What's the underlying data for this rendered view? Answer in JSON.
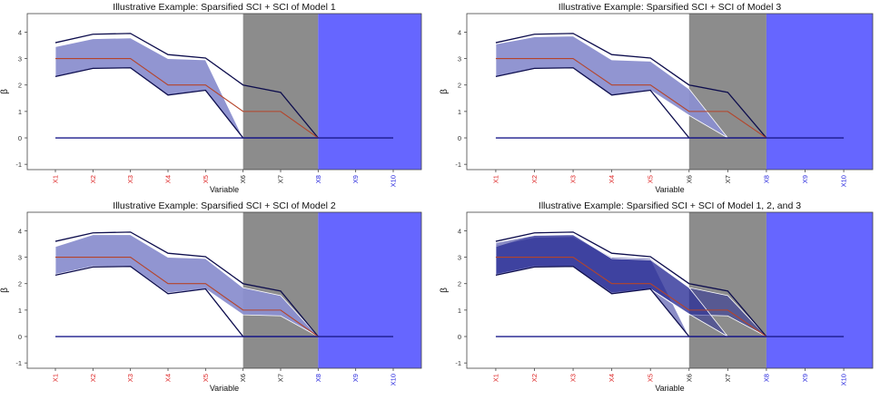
{
  "figure": {
    "xlabel": "Variable",
    "ylabel": "β",
    "colors": {
      "band_fill": "#8b8fcf",
      "band_fill_dark": "#2b2f98",
      "band_edge": "#ffffff",
      "outer_line": "#0d0d4d",
      "estimate_line": "#b5442a",
      "zero_line": "#1a1a8c",
      "gray_region": "#8c8c8c",
      "blue_region": "#6666ff",
      "label_red": "#dd2222",
      "label_black": "#222222",
      "label_blue": "#2222dd"
    }
  },
  "chart_data": [
    {
      "type": "area",
      "title": "Illustrative Example: Sparsified SCI + SCI of Model 1",
      "xlabel": "Variable",
      "ylabel": "β",
      "categories": [
        "X1",
        "X2",
        "X3",
        "X4",
        "X5",
        "X6",
        "X7",
        "X8",
        "X9",
        "X10"
      ],
      "category_colors": [
        "red",
        "red",
        "red",
        "red",
        "red",
        "black",
        "black",
        "blue",
        "blue",
        "blue"
      ],
      "ylim": [
        -1.2,
        4.7
      ],
      "yticks": [
        -1,
        0,
        1,
        2,
        3,
        4
      ],
      "shaded_regions": [
        {
          "name": "gray-region",
          "from": 6,
          "to": 8,
          "color": "gray"
        },
        {
          "name": "blue-region",
          "from": 8,
          "to": 10.75,
          "color": "blue"
        }
      ],
      "outer_upper": [
        3.6,
        3.92,
        3.95,
        3.15,
        3.02,
        2.0,
        1.72,
        0
      ],
      "outer_lower": [
        2.32,
        2.63,
        2.65,
        1.62,
        1.8,
        0,
        0,
        0
      ],
      "estimate": [
        3,
        3,
        3,
        2,
        2,
        1,
        1,
        0
      ],
      "zero_line": [
        0,
        0,
        0,
        0,
        0,
        0,
        0,
        0,
        0,
        0
      ],
      "bands": [
        {
          "name": "model-1",
          "upper": [
            3.45,
            3.75,
            3.78,
            3.0,
            2.95,
            0
          ],
          "lower": [
            2.32,
            2.63,
            2.65,
            1.62,
            1.8,
            0
          ]
        }
      ]
    },
    {
      "type": "area",
      "title": "Illustrative Example: Sparsified SCI + SCI of Model 3",
      "xlabel": "Variable",
      "ylabel": "β",
      "categories": [
        "X1",
        "X2",
        "X3",
        "X4",
        "X5",
        "X6",
        "X7",
        "X8",
        "X9",
        "X10"
      ],
      "category_colors": [
        "red",
        "red",
        "red",
        "red",
        "red",
        "black",
        "black",
        "blue",
        "blue",
        "blue"
      ],
      "ylim": [
        -1.2,
        4.7
      ],
      "yticks": [
        -1,
        0,
        1,
        2,
        3,
        4
      ],
      "shaded_regions": [
        {
          "name": "gray-region",
          "from": 6,
          "to": 8,
          "color": "gray"
        },
        {
          "name": "blue-region",
          "from": 8,
          "to": 10.75,
          "color": "blue"
        }
      ],
      "outer_upper": [
        3.6,
        3.92,
        3.95,
        3.15,
        3.02,
        2.0,
        1.72,
        0
      ],
      "outer_lower": [
        2.32,
        2.63,
        2.65,
        1.62,
        1.8,
        0,
        0,
        0
      ],
      "estimate": [
        3,
        3,
        3,
        2,
        2,
        1,
        1,
        0
      ],
      "zero_line": [
        0,
        0,
        0,
        0,
        0,
        0,
        0,
        0,
        0,
        0
      ],
      "bands": [
        {
          "name": "model-3",
          "upper": [
            3.55,
            3.82,
            3.85,
            2.95,
            2.9,
            1.85,
            0
          ],
          "lower": [
            2.32,
            2.63,
            2.65,
            1.62,
            1.8,
            0.85,
            0
          ]
        }
      ]
    },
    {
      "type": "area",
      "title": "Illustrative Example: Sparsified SCI + SCI of Model 2",
      "xlabel": "Variable",
      "ylabel": "β",
      "categories": [
        "X1",
        "X2",
        "X3",
        "X4",
        "X5",
        "X6",
        "X7",
        "X8",
        "X9",
        "X10"
      ],
      "category_colors": [
        "red",
        "red",
        "red",
        "red",
        "red",
        "black",
        "black",
        "blue",
        "blue",
        "blue"
      ],
      "ylim": [
        -1.2,
        4.7
      ],
      "yticks": [
        -1,
        0,
        1,
        2,
        3,
        4
      ],
      "shaded_regions": [
        {
          "name": "gray-region",
          "from": 6,
          "to": 8,
          "color": "gray"
        },
        {
          "name": "blue-region",
          "from": 8,
          "to": 10.75,
          "color": "blue"
        }
      ],
      "outer_upper": [
        3.6,
        3.92,
        3.95,
        3.15,
        3.02,
        2.0,
        1.72,
        0
      ],
      "outer_lower": [
        2.32,
        2.63,
        2.65,
        1.62,
        1.8,
        0,
        0,
        0
      ],
      "estimate": [
        3,
        3,
        3,
        2,
        2,
        1,
        1,
        0
      ],
      "zero_line": [
        0,
        0,
        0,
        0,
        0,
        0,
        0,
        0,
        0,
        0
      ],
      "bands": [
        {
          "name": "model-2",
          "upper": [
            3.4,
            3.85,
            3.85,
            3.0,
            2.95,
            1.85,
            1.55,
            0
          ],
          "lower": [
            2.35,
            2.65,
            2.65,
            1.65,
            1.8,
            0.82,
            0.78,
            0
          ]
        }
      ]
    },
    {
      "type": "area",
      "title": "Illustrative Example: Sparsified SCI + SCI of Model 1, 2, and 3",
      "xlabel": "Variable",
      "ylabel": "β",
      "categories": [
        "X1",
        "X2",
        "X3",
        "X4",
        "X5",
        "X6",
        "X7",
        "X8",
        "X9",
        "X10"
      ],
      "category_colors": [
        "red",
        "red",
        "red",
        "red",
        "red",
        "black",
        "black",
        "blue",
        "blue",
        "blue"
      ],
      "ylim": [
        -1.2,
        4.7
      ],
      "yticks": [
        -1,
        0,
        1,
        2,
        3,
        4
      ],
      "shaded_regions": [
        {
          "name": "gray-region",
          "from": 6,
          "to": 8,
          "color": "gray"
        },
        {
          "name": "blue-region",
          "from": 8,
          "to": 10.75,
          "color": "blue"
        }
      ],
      "outer_upper": [
        3.6,
        3.92,
        3.95,
        3.15,
        3.02,
        2.0,
        1.72,
        0
      ],
      "outer_lower": [
        2.32,
        2.63,
        2.65,
        1.62,
        1.8,
        0,
        0,
        0
      ],
      "estimate": [
        3,
        3,
        3,
        2,
        2,
        1,
        1,
        0
      ],
      "zero_line": [
        0,
        0,
        0,
        0,
        0,
        0,
        0,
        0,
        0,
        0
      ],
      "bands": [
        {
          "name": "model-1",
          "upper": [
            3.45,
            3.75,
            3.78,
            3.0,
            2.95,
            0
          ],
          "lower": [
            2.32,
            2.63,
            2.65,
            1.62,
            1.8,
            0
          ]
        },
        {
          "name": "model-2",
          "upper": [
            3.4,
            3.85,
            3.85,
            3.0,
            2.95,
            1.85,
            1.55,
            0
          ],
          "lower": [
            2.35,
            2.65,
            2.65,
            1.65,
            1.8,
            0.82,
            0.78,
            0
          ]
        },
        {
          "name": "model-3",
          "upper": [
            3.55,
            3.82,
            3.85,
            2.95,
            2.9,
            1.85,
            0
          ],
          "lower": [
            2.32,
            2.63,
            2.65,
            1.62,
            1.8,
            0.85,
            0
          ]
        }
      ]
    }
  ]
}
